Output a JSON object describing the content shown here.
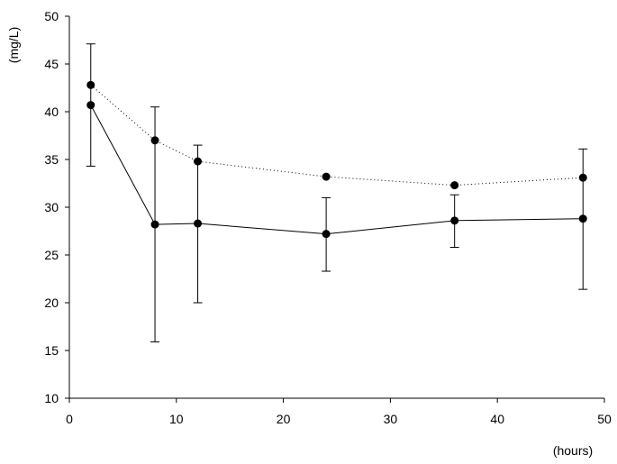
{
  "chart_data": {
    "type": "line",
    "title": "",
    "xlabel": "(hours)",
    "ylabel": "(mg/L)",
    "xlim": [
      0,
      50
    ],
    "ylim": [
      10,
      50
    ],
    "xticks": [
      0,
      10,
      20,
      30,
      40,
      50
    ],
    "yticks": [
      10,
      15,
      20,
      25,
      30,
      35,
      40,
      45,
      50
    ],
    "grid": false,
    "legend": "none",
    "series": [
      {
        "line_style": "solid",
        "color": "#000000",
        "x": [
          2,
          8,
          12,
          24,
          36,
          48
        ],
        "y": [
          40.7,
          28.2,
          28.3,
          27.2,
          28.6,
          28.8
        ],
        "err_low": [
          34.3,
          15.9,
          20.0,
          23.3,
          25.8,
          21.4
        ],
        "err_high": [
          47.1,
          40.5,
          36.5,
          31.0,
          31.3,
          36.1
        ]
      },
      {
        "line_style": "dotted",
        "color": "#000000",
        "x": [
          2,
          8,
          12,
          24,
          36,
          48
        ],
        "y": [
          42.8,
          37.0,
          34.8,
          33.2,
          32.3,
          33.1
        ]
      }
    ]
  }
}
